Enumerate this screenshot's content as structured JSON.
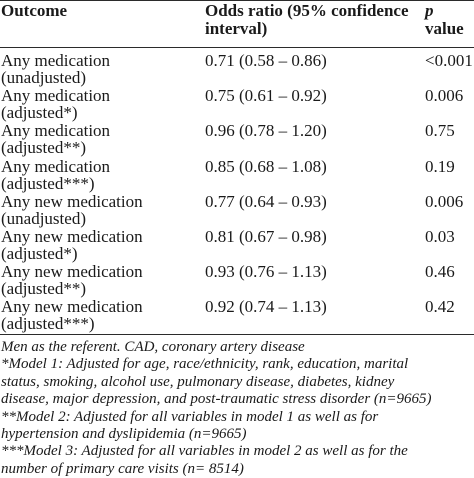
{
  "table": {
    "headers": {
      "outcome": "Outcome",
      "odds_line1": "Odds ratio (95% confidence",
      "odds_line2": "interval)",
      "p_line1": "p",
      "p_line2": "value"
    },
    "rows": [
      {
        "outcome_line1": "Any medication",
        "outcome_line2": "(unadjusted)",
        "odds": "0.71 (0.58 – 0.86)",
        "p": "<0.001"
      },
      {
        "outcome_line1": "Any medication",
        "outcome_line2": "(adjusted*)",
        "odds": "0.75 (0.61 – 0.92)",
        "p": "0.006"
      },
      {
        "outcome_line1": "Any medication",
        "outcome_line2": "(adjusted**)",
        "odds": "0.96 (0.78 – 1.20)",
        "p": "0.75"
      },
      {
        "outcome_line1": "Any medication",
        "outcome_line2": "(adjusted***)",
        "odds": "0.85 (0.68 – 1.08)",
        "p": "0.19"
      },
      {
        "outcome_line1": "Any new medication",
        "outcome_line2": "(unadjusted)",
        "odds": "0.77 (0.64 – 0.93)",
        "p": "0.006"
      },
      {
        "outcome_line1": "Any new medication",
        "outcome_line2": "(adjusted*)",
        "odds": "0.81 (0.67 – 0.98)",
        "p": "0.03"
      },
      {
        "outcome_line1": "Any new medication",
        "outcome_line2": "(adjusted**)",
        "odds": "0.93 (0.76 – 1.13)",
        "p": "0.46"
      },
      {
        "outcome_line1": "Any new medication",
        "outcome_line2": "(adjusted***)",
        "odds": "0.92 (0.74 – 1.13)",
        "p": "0.42"
      }
    ]
  },
  "footnotes": [
    "Men as the referent. CAD, coronary artery disease",
    "*Model 1: Adjusted for age, race/ethnicity, rank, education, marital",
    "status, smoking, alcohol use, pulmonary disease, diabetes, kidney",
    "disease, major depression, and post-traumatic stress disorder (n=9665)",
    "**Model 2: Adjusted for all variables in model 1 as well as for",
    "hypertension and dyslipidemia (n=9665)",
    "***Model 3: Adjusted for all variables in model 2 as well as for the",
    "number of primary care visits (n= 8514)"
  ]
}
